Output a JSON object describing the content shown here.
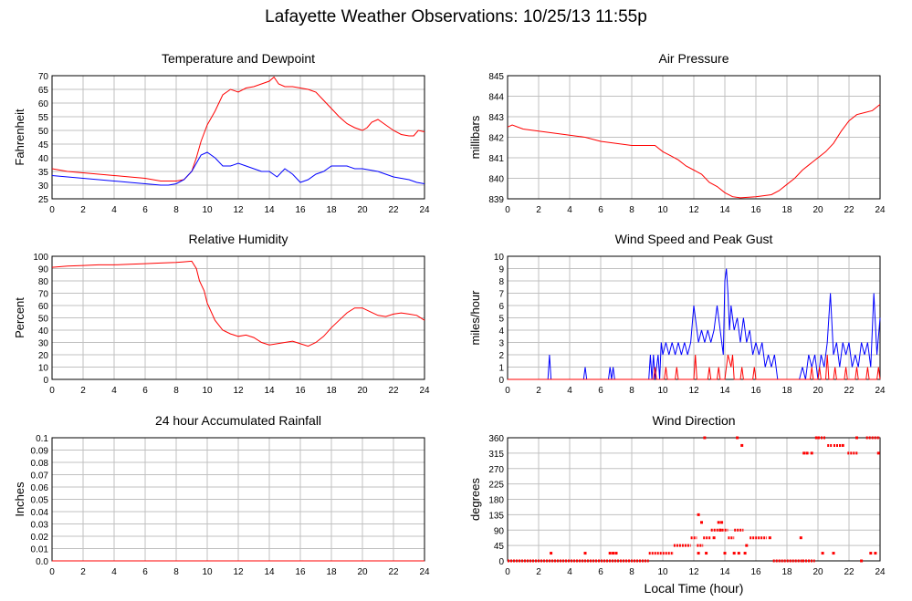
{
  "page": {
    "title": "Lafayette Weather Observations: 10/25/13 11:55p",
    "xlabel": "Local Time (hour)"
  },
  "chart_data": [
    {
      "id": "temp",
      "type": "line",
      "title": "Temperature and Dewpoint",
      "ylabel": "Fahrenheit",
      "xlim": [
        0,
        24
      ],
      "ylim": [
        25,
        70
      ],
      "xticks": [
        0,
        2,
        4,
        6,
        8,
        10,
        12,
        14,
        16,
        18,
        20,
        22,
        24
      ],
      "yticks": [
        25,
        30,
        35,
        40,
        45,
        50,
        55,
        60,
        65,
        70
      ],
      "grid": true,
      "series": [
        {
          "color": "#ff0000",
          "x": [
            0,
            1,
            2,
            3,
            4,
            5,
            6,
            7,
            7.5,
            8,
            8.5,
            9,
            9.3,
            9.6,
            10,
            10.5,
            11,
            11.5,
            12,
            12.5,
            13,
            13.5,
            14,
            14.3,
            14.6,
            15,
            15.5,
            16,
            16.5,
            17,
            17.5,
            18,
            18.5,
            19,
            19.5,
            20,
            20.3,
            20.6,
            21,
            21.5,
            22,
            22.5,
            23,
            23.3,
            23.6,
            24
          ],
          "y": [
            36,
            35,
            34.5,
            34,
            33.5,
            33,
            32.5,
            31.5,
            31.5,
            31.5,
            32,
            35,
            40,
            46,
            52,
            57,
            63,
            65,
            64,
            65.5,
            66,
            67,
            68,
            69.5,
            67,
            66,
            66,
            65.5,
            65,
            64,
            61,
            58,
            55,
            52.5,
            51,
            50,
            51,
            53,
            54,
            52,
            50,
            48.5,
            48,
            48,
            50,
            49.5
          ]
        },
        {
          "color": "#0000ff",
          "x": [
            0,
            1,
            2,
            3,
            4,
            5,
            6,
            7,
            7.5,
            8,
            8.5,
            9,
            9.3,
            9.6,
            10,
            10.5,
            11,
            11.5,
            12,
            12.5,
            13,
            13.5,
            14,
            14.5,
            15,
            15.5,
            16,
            16.5,
            17,
            17.5,
            18,
            18.5,
            19,
            19.5,
            20,
            20.5,
            21,
            21.5,
            22,
            22.5,
            23,
            23.5,
            24
          ],
          "y": [
            33.5,
            33,
            32.5,
            32,
            31.5,
            31,
            30.5,
            30,
            30,
            30.5,
            32,
            35,
            38,
            41,
            42,
            40,
            37,
            37,
            38,
            37,
            36,
            35,
            35,
            33,
            36,
            34,
            31,
            32,
            34,
            35,
            37,
            37,
            37,
            36,
            36,
            35.5,
            35,
            34,
            33,
            32.5,
            32,
            31,
            30.5
          ]
        }
      ]
    },
    {
      "id": "pressure",
      "type": "line",
      "title": "Air Pressure",
      "ylabel": "millibars",
      "xlim": [
        0,
        24
      ],
      "ylim": [
        839,
        845
      ],
      "xticks": [
        0,
        2,
        4,
        6,
        8,
        10,
        12,
        14,
        16,
        18,
        20,
        22,
        24
      ],
      "yticks": [
        839,
        840,
        841,
        842,
        843,
        844,
        845
      ],
      "grid": true,
      "series": [
        {
          "color": "#ff0000",
          "x": [
            0,
            0.3,
            1,
            2,
            3,
            4,
            5,
            6,
            7,
            8,
            9,
            9.5,
            10,
            10.5,
            11,
            11.5,
            12,
            12.5,
            13,
            13.5,
            14,
            14.5,
            15,
            16,
            17,
            17.5,
            18,
            18.5,
            19,
            19.5,
            20,
            20.5,
            21,
            21.5,
            22,
            22.5,
            23,
            23.5,
            24
          ],
          "y": [
            842.5,
            842.6,
            842.4,
            842.3,
            842.2,
            842.1,
            842.0,
            841.8,
            841.7,
            841.6,
            841.6,
            841.6,
            841.3,
            841.1,
            840.9,
            840.6,
            840.4,
            840.2,
            839.8,
            839.6,
            839.3,
            839.1,
            839.05,
            839.1,
            839.2,
            839.4,
            839.7,
            840.0,
            840.4,
            840.7,
            841.0,
            841.3,
            841.7,
            842.3,
            842.8,
            843.1,
            843.2,
            843.3,
            843.6
          ]
        }
      ]
    },
    {
      "id": "humidity",
      "type": "line",
      "title": "Relative Humidity",
      "ylabel": "Percent",
      "xlim": [
        0,
        24
      ],
      "ylim": [
        0,
        100
      ],
      "xticks": [
        0,
        2,
        4,
        6,
        8,
        10,
        12,
        14,
        16,
        18,
        20,
        22,
        24
      ],
      "yticks": [
        0,
        10,
        20,
        30,
        40,
        50,
        60,
        70,
        80,
        90,
        100
      ],
      "grid": true,
      "series": [
        {
          "color": "#ff0000",
          "x": [
            0,
            1,
            2,
            3,
            4,
            5,
            6,
            7,
            8,
            8.5,
            9,
            9.3,
            9.5,
            9.8,
            10,
            10.5,
            11,
            11.5,
            12,
            12.5,
            13,
            13.5,
            14,
            14.5,
            15,
            15.5,
            16,
            16.5,
            17,
            17.5,
            18,
            18.5,
            19,
            19.5,
            20,
            20.5,
            21,
            21.5,
            22,
            22.5,
            23,
            23.5,
            24
          ],
          "y": [
            91,
            92,
            92.5,
            93,
            93,
            93.5,
            94,
            94.5,
            95,
            95.5,
            96,
            90,
            80,
            72,
            62,
            48,
            40,
            37,
            35,
            36,
            34,
            30,
            28,
            29,
            30,
            31,
            29,
            27,
            30,
            35,
            42,
            48,
            54,
            58,
            58,
            55,
            52,
            51,
            53,
            54,
            53,
            52,
            48
          ]
        }
      ]
    },
    {
      "id": "wind",
      "type": "line",
      "title": "Wind Speed and Peak Gust",
      "ylabel": "miles/hour",
      "xlim": [
        0,
        24
      ],
      "ylim": [
        0,
        10
      ],
      "xticks": [
        0,
        2,
        4,
        6,
        8,
        10,
        12,
        14,
        16,
        18,
        20,
        22,
        24
      ],
      "yticks": [
        0,
        1,
        2,
        3,
        4,
        5,
        6,
        7,
        8,
        9,
        10
      ],
      "grid": true,
      "series": [
        {
          "color": "#0000ff",
          "x": [
            0,
            2.6,
            2.7,
            2.8,
            2.9,
            4.9,
            5.0,
            5.1,
            6.5,
            6.6,
            6.7,
            6.8,
            6.9,
            7.0,
            9.1,
            9.2,
            9.3,
            9.4,
            9.5,
            9.6,
            9.7,
            9.8,
            9.9,
            10.0,
            10.2,
            10.4,
            10.6,
            10.8,
            11.0,
            11.2,
            11.4,
            11.6,
            11.8,
            12.0,
            12.1,
            12.3,
            12.5,
            12.7,
            12.9,
            13.1,
            13.3,
            13.5,
            13.7,
            13.9,
            14.0,
            14.1,
            14.2,
            14.3,
            14.4,
            14.6,
            14.8,
            15.0,
            15.2,
            15.4,
            15.6,
            15.8,
            16.0,
            16.2,
            16.4,
            16.6,
            16.8,
            17.0,
            17.2,
            17.4,
            18.8,
            19.0,
            19.2,
            19.4,
            19.6,
            19.8,
            20.0,
            20.2,
            20.4,
            20.6,
            20.8,
            21.0,
            21.2,
            21.4,
            21.6,
            21.8,
            22.0,
            22.2,
            22.4,
            22.6,
            22.8,
            23.0,
            23.2,
            23.4,
            23.6,
            23.8,
            24
          ],
          "y": [
            0,
            0,
            2,
            0,
            0,
            0,
            1,
            0,
            0,
            1,
            0,
            1,
            0,
            0,
            0,
            2,
            0,
            2,
            0,
            1,
            2,
            0,
            3,
            2,
            3,
            2,
            3,
            2,
            3,
            2,
            3,
            2,
            3,
            6,
            5,
            3,
            4,
            3,
            4,
            3,
            4,
            6,
            4,
            2,
            8,
            9,
            7,
            4,
            6,
            4,
            5,
            3,
            5,
            3,
            4,
            2,
            3,
            2,
            3,
            1,
            2,
            1,
            2,
            0,
            0,
            1,
            0,
            2,
            1,
            2,
            0,
            2,
            1,
            3,
            7,
            2,
            3,
            1,
            3,
            2,
            3,
            1,
            2,
            1,
            3,
            2,
            3,
            1,
            7,
            2,
            5
          ]
        },
        {
          "color": "#ff0000",
          "x": [
            0,
            9.4,
            9.5,
            9.6,
            10.1,
            10.2,
            10.3,
            10.8,
            10.9,
            11.0,
            12.0,
            12.1,
            12.2,
            12.9,
            13.0,
            13.1,
            13.5,
            13.6,
            13.7,
            14.0,
            14.1,
            14.2,
            14.4,
            14.5,
            14.6,
            15.0,
            15.1,
            15.2,
            15.8,
            15.9,
            16.0,
            19.5,
            19.6,
            19.7,
            20.0,
            20.1,
            20.2,
            20.5,
            20.6,
            20.7,
            21.0,
            21.1,
            21.2,
            21.7,
            21.8,
            21.9,
            22.4,
            22.5,
            22.6,
            23.1,
            23.2,
            23.3,
            23.8,
            23.9,
            24
          ],
          "y": [
            0,
            0,
            1,
            0,
            0,
            1,
            0,
            0,
            1,
            0,
            0,
            2,
            0,
            0,
            1,
            0,
            0,
            1,
            0,
            0,
            1,
            2,
            1,
            2,
            0,
            0,
            1,
            0,
            0,
            1,
            0,
            0,
            1,
            0,
            0,
            1,
            0,
            0,
            2,
            0,
            0,
            1,
            0,
            0,
            1,
            0,
            0,
            1,
            0,
            0,
            1,
            0,
            0,
            1,
            0
          ]
        }
      ]
    },
    {
      "id": "rain",
      "type": "line",
      "title": "24 hour Accumulated Rainfall",
      "ylabel": "Inches",
      "xlim": [
        0,
        24
      ],
      "ylim": [
        0,
        0.1
      ],
      "xticks": [
        0,
        2,
        4,
        6,
        8,
        10,
        12,
        14,
        16,
        18,
        20,
        22,
        24
      ],
      "yticks": [
        0.0,
        0.01,
        0.02,
        0.03,
        0.04,
        0.05,
        0.06,
        0.07,
        0.08,
        0.09,
        0.1
      ],
      "ytick_labels": [
        "0.0",
        "0.01",
        "0.02",
        "0.03",
        "0.04",
        "0.05",
        "0.06",
        "0.07",
        "0.08",
        "0.09",
        "0.1"
      ],
      "grid": true,
      "series": [
        {
          "color": "#ff0000",
          "x": [
            0,
            24
          ],
          "y": [
            0,
            0
          ]
        }
      ]
    },
    {
      "id": "direction",
      "type": "scatter",
      "title": "Wind Direction",
      "ylabel": "degrees",
      "xlim": [
        0,
        24
      ],
      "ylim": [
        0,
        360
      ],
      "xticks": [
        0,
        2,
        4,
        6,
        8,
        10,
        12,
        14,
        16,
        18,
        20,
        22,
        24
      ],
      "yticks": [
        0,
        45,
        90,
        135,
        180,
        225,
        270,
        315,
        360
      ],
      "grid": true,
      "series": [
        {
          "color": "#ff0000",
          "runs": [
            [
              0,
              9.1,
              0
            ],
            [
              9.1,
              10.7,
              22.5
            ],
            [
              10.7,
              11.8,
              45
            ],
            [
              11.8,
              12.2,
              67.5
            ],
            [
              12.2,
              12.6,
              45
            ],
            [
              12.6,
              13.1,
              67.5
            ],
            [
              13.1,
              13.8,
              90
            ],
            [
              13.8,
              14.2,
              90
            ],
            [
              14.2,
              14.6,
              67.5
            ],
            [
              14.6,
              15.2,
              90
            ],
            [
              15.6,
              16.7,
              67.5
            ],
            [
              17.1,
              19.0,
              0
            ],
            [
              19.0,
              19.8,
              0
            ],
            [
              20.0,
              20.5,
              360
            ],
            [
              20.6,
              20.9,
              337.5
            ],
            [
              21.0,
              21.6,
              337.5
            ],
            [
              21.9,
              22.6,
              315
            ],
            [
              23.1,
              24,
              360
            ]
          ],
          "x": [
            2.8,
            5.0,
            6.6,
            6.8,
            7.0,
            12.3,
            12.5,
            12.7,
            13.3,
            13.6,
            14.0,
            14.8,
            15.1,
            15.4,
            16.9,
            18.9,
            19.1,
            19.3,
            19.6,
            19.9,
            20.3,
            21.0,
            21.6,
            22.5,
            22.8,
            23.4,
            23.7,
            23.9,
            12.8,
            14.6,
            14.9,
            13.8,
            15.3,
            12.3,
            13.7
          ],
          "y": [
            22.5,
            22.5,
            22.5,
            22.5,
            22.5,
            135,
            112.5,
            360,
            67.5,
            112.5,
            22.5,
            360,
            337.5,
            45,
            67.5,
            67.5,
            315,
            315,
            315,
            360,
            22.5,
            22.5,
            337.5,
            360,
            0,
            22.5,
            22.5,
            315,
            22.5,
            22.5,
            22.5,
            112.5,
            22.5,
            22.5,
            90
          ]
        }
      ]
    }
  ]
}
